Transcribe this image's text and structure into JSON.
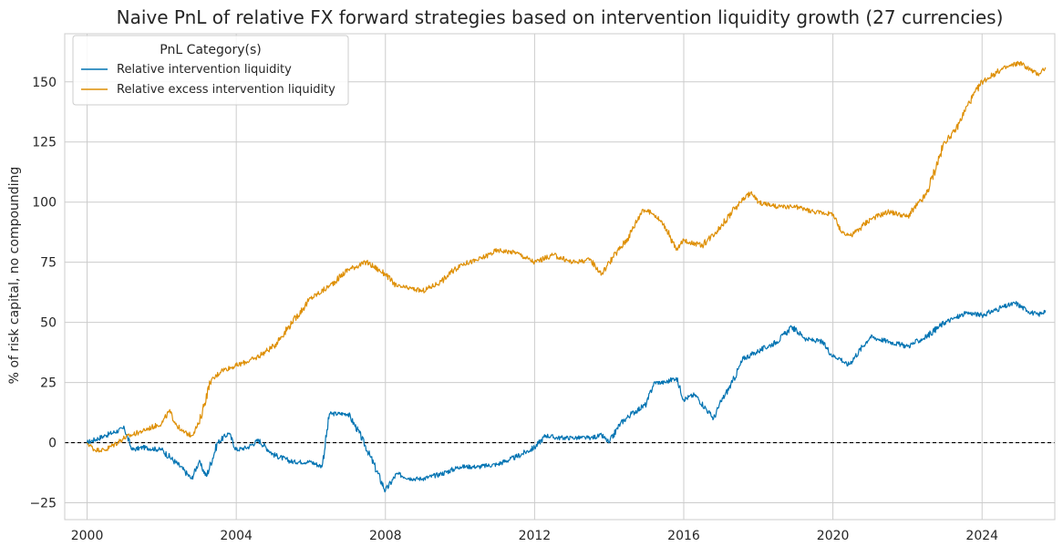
{
  "chart_data": {
    "type": "line",
    "title": "Naive PnL of relative FX forward strategies based on intervention liquidity growth (27 currencies)",
    "xlabel": "",
    "ylabel": "% of risk capital, no compounding",
    "xlim": [
      1999.4,
      2025.95
    ],
    "ylim": [
      -32,
      170
    ],
    "x_ticks": [
      2000,
      2004,
      2008,
      2012,
      2016,
      2020,
      2024
    ],
    "y_ticks": [
      -25,
      0,
      25,
      50,
      75,
      100,
      125,
      150
    ],
    "y_tick_labels": [
      "−25",
      "0",
      "25",
      "50",
      "75",
      "100",
      "125",
      "150"
    ],
    "zero_line": true,
    "grid": true,
    "legend": {
      "title": "PnL Category(s)",
      "position": "top-left"
    },
    "series": [
      {
        "name": "Relative intervention liquidity",
        "color": "#0173b2",
        "x": [
          2000.0,
          2000.5,
          2001.0,
          2001.2,
          2001.5,
          2002.0,
          2002.5,
          2002.8,
          2003.0,
          2003.2,
          2003.5,
          2003.8,
          2004.0,
          2004.3,
          2004.6,
          2005.0,
          2005.5,
          2006.0,
          2006.3,
          2006.5,
          2007.0,
          2007.3,
          2007.6,
          2008.0,
          2008.3,
          2008.7,
          2009.0,
          2009.5,
          2010.0,
          2010.5,
          2011.0,
          2011.5,
          2012.0,
          2012.3,
          2012.6,
          2013.0,
          2013.5,
          2013.8,
          2014.0,
          2014.3,
          2014.6,
          2015.0,
          2015.2,
          2015.5,
          2015.8,
          2016.0,
          2016.3,
          2016.6,
          2016.8,
          2017.0,
          2017.3,
          2017.6,
          2018.0,
          2018.5,
          2018.9,
          2019.3,
          2019.7,
          2020.0,
          2020.2,
          2020.4,
          2020.8,
          2021.0,
          2021.5,
          2022.0,
          2022.5,
          2023.0,
          2023.3,
          2023.6,
          2024.0,
          2024.5,
          2024.9,
          2025.2,
          2025.5,
          2025.7
        ],
        "values": [
          0,
          3,
          6,
          -3,
          -2,
          -3,
          -10,
          -15,
          -8,
          -14,
          0,
          4,
          -3,
          -2,
          1,
          -5,
          -8,
          -8,
          -10,
          12,
          12,
          4,
          -6,
          -20,
          -13,
          -15,
          -15,
          -13,
          -10,
          -10,
          -9,
          -6,
          -2,
          3,
          2,
          2,
          2,
          3,
          0,
          8,
          12,
          16,
          25,
          25,
          27,
          18,
          20,
          14,
          10,
          17,
          25,
          35,
          38,
          42,
          48,
          43,
          42,
          36,
          35,
          32,
          40,
          44,
          42,
          40,
          44,
          50,
          52,
          54,
          53,
          56,
          58,
          55,
          53,
          55
        ]
      },
      {
        "name": "Relative excess intervention liquidity",
        "color": "#de8f05",
        "x": [
          2000.0,
          2000.2,
          2000.5,
          2001.0,
          2001.5,
          2002.0,
          2002.2,
          2002.5,
          2002.8,
          2003.0,
          2003.3,
          2003.6,
          2004.0,
          2004.5,
          2005.0,
          2005.5,
          2006.0,
          2006.5,
          2007.0,
          2007.5,
          2008.0,
          2008.3,
          2008.7,
          2009.0,
          2009.5,
          2010.0,
          2010.5,
          2011.0,
          2011.5,
          2012.0,
          2012.5,
          2013.0,
          2013.5,
          2013.8,
          2014.0,
          2014.5,
          2014.9,
          2015.2,
          2015.5,
          2015.8,
          2016.0,
          2016.5,
          2017.0,
          2017.5,
          2017.8,
          2018.0,
          2018.5,
          2019.0,
          2019.5,
          2020.0,
          2020.2,
          2020.5,
          2021.0,
          2021.5,
          2022.0,
          2022.5,
          2023.0,
          2023.3,
          2023.6,
          2024.0,
          2024.5,
          2025.0,
          2025.3,
          2025.5,
          2025.7
        ],
        "values": [
          0,
          -3,
          -3,
          2,
          5,
          8,
          13,
          5,
          3,
          8,
          25,
          30,
          32,
          35,
          40,
          50,
          60,
          65,
          72,
          75,
          70,
          65,
          64,
          63,
          67,
          74,
          76,
          80,
          79,
          75,
          78,
          75,
          76,
          70,
          75,
          85,
          97,
          95,
          90,
          80,
          84,
          82,
          90,
          100,
          104,
          100,
          98,
          98,
          96,
          95,
          88,
          86,
          93,
          96,
          94,
          103,
          125,
          130,
          140,
          150,
          155,
          158,
          155,
          153,
          156
        ]
      }
    ]
  }
}
